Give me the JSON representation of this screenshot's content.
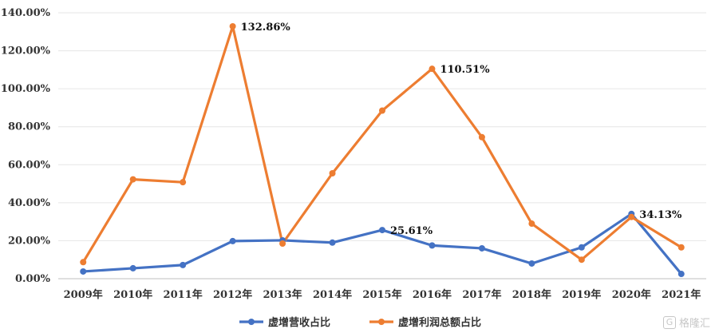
{
  "chart_data": {
    "type": "line",
    "title": "",
    "xlabel": "",
    "ylabel": "",
    "categories": [
      "2009年",
      "2010年",
      "2011年",
      "2012年",
      "2013年",
      "2014年",
      "2015年",
      "2016年",
      "2017年",
      "2018年",
      "2019年",
      "2020年",
      "2021年"
    ],
    "ylim": [
      0,
      140
    ],
    "yticks": [
      "0.00%",
      "20.00%",
      "40.00%",
      "60.00%",
      "80.00%",
      "100.00%",
      "120.00%",
      "140.00%"
    ],
    "grid": true,
    "legend_position": "bottom",
    "series": [
      {
        "name": "虚增营收占比",
        "color": "#4472C4",
        "values": [
          3.8,
          5.5,
          7.2,
          19.8,
          20.2,
          19.0,
          25.61,
          17.5,
          16.0,
          8.0,
          16.5,
          34.13,
          2.5
        ]
      },
      {
        "name": "虚增利润总额占比",
        "color": "#ED7D31",
        "values": [
          8.7,
          52.3,
          50.8,
          132.86,
          18.5,
          55.5,
          88.5,
          110.51,
          74.5,
          29.0,
          10.0,
          32.5,
          16.5
        ]
      }
    ],
    "annotations": [
      {
        "text": "132.86%",
        "series": 1,
        "index": 3
      },
      {
        "text": "110.51%",
        "series": 1,
        "index": 7
      },
      {
        "text": "25.61%",
        "series": 0,
        "index": 6
      },
      {
        "text": "34.13%",
        "series": 0,
        "index": 11
      }
    ]
  },
  "watermark": {
    "icon": "G",
    "text": "格隆汇"
  }
}
